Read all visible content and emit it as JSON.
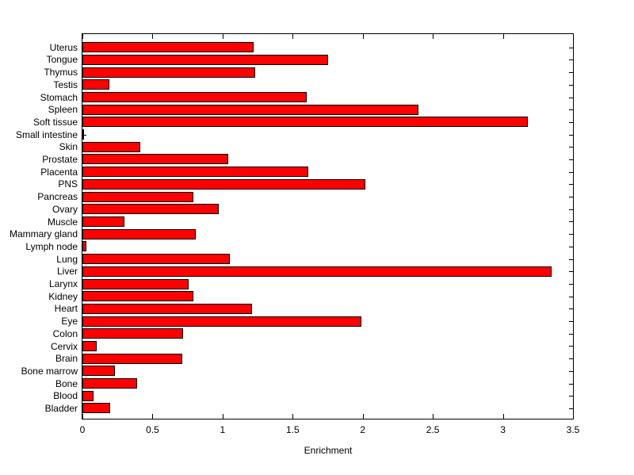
{
  "chart_data": {
    "type": "bar",
    "orientation": "horizontal",
    "title": "",
    "xlabel": "Enrichment",
    "ylabel": "",
    "xlim": [
      0,
      3.5
    ],
    "xticks": [
      0,
      0.5,
      1,
      1.5,
      2,
      2.5,
      3,
      3.5
    ],
    "xtick_labels": [
      "0",
      "0.5",
      "1",
      "1.5",
      "2",
      "2.5",
      "3",
      "3.5"
    ],
    "grid": false,
    "legend": "none",
    "bar_color": "#FF0000",
    "bar_edge_color": "#000000",
    "axis_color": "#000000",
    "background_color": "#FFFFFF",
    "categories": [
      "Uterus",
      "Tongue",
      "Thymus",
      "Testis",
      "Stomach",
      "Spleen",
      "Soft tissue",
      "Small intestine",
      "Skin",
      "Prostate",
      "Placenta",
      "PNS",
      "Pancreas",
      "Ovary",
      "Muscle",
      "Mammary gland",
      "Lymph node",
      "Lung",
      "Liver",
      "Larynx",
      "Kidney",
      "Heart",
      "Eye",
      "Colon",
      "Cervix",
      "Brain",
      "Bone marrow",
      "Bone",
      "Blood",
      "Bladder"
    ],
    "values": [
      1.22,
      1.75,
      1.23,
      0.19,
      1.6,
      2.4,
      3.18,
      0.01,
      0.41,
      1.04,
      1.61,
      2.02,
      0.79,
      0.97,
      0.3,
      0.81,
      0.03,
      1.05,
      3.35,
      0.76,
      0.79,
      1.21,
      1.99,
      0.72,
      0.1,
      0.71,
      0.23,
      0.39,
      0.08,
      0.2
    ]
  }
}
